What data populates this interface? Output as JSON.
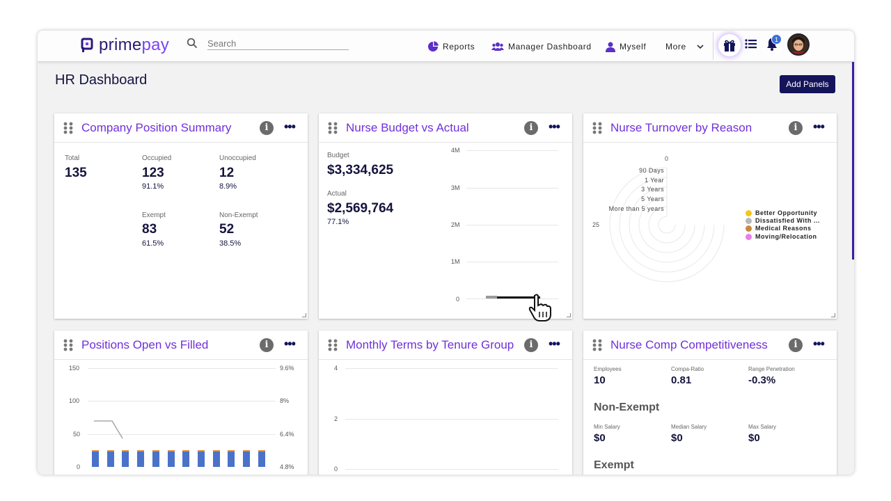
{
  "brand": {
    "prime": "prime",
    "pay": "pay"
  },
  "search": {
    "placeholder": "Search"
  },
  "nav": {
    "reports": "Reports",
    "manager_dashboard": "Manager Dashboard",
    "myself": "Myself",
    "more": "More",
    "notification_count": "1"
  },
  "page": {
    "title": "HR Dashboard",
    "add_panels": "Add Panels"
  },
  "panels": {
    "company_position": {
      "title": "Company Position Summary",
      "total_label": "Total",
      "total": "135",
      "occupied_label": "Occupied",
      "occupied": "123",
      "occupied_pct": "91.1%",
      "unoccupied_label": "Unoccupied",
      "unoccupied": "12",
      "unoccupied_pct": "8.9%",
      "exempt_label": "Exempt",
      "exempt": "83",
      "exempt_pct": "61.5%",
      "nonexempt_label": "Non-Exempt",
      "nonexempt": "52",
      "nonexempt_pct": "38.5%"
    },
    "nurse_budget": {
      "title": "Nurse Budget vs Actual",
      "budget_label": "Budget",
      "budget": "$3,334,625",
      "actual_label": "Actual",
      "actual": "$2,569,764",
      "actual_pct": "77.1%",
      "y_ticks": [
        "4M",
        "3M",
        "2M",
        "1M",
        "0"
      ]
    },
    "nurse_turnover": {
      "title": "Nurse Turnover by Reason",
      "ring_labels": [
        "90 Days",
        "1 Year",
        "3 Years",
        "5 Years",
        "More than 5 years"
      ],
      "top_value": "0",
      "side_value": "25",
      "legend": [
        {
          "label": "Better Opportunity",
          "color": "#f5c518"
        },
        {
          "label": "Dissatisfied With ...",
          "color": "#b9b9b9"
        },
        {
          "label": "Medical Reasons",
          "color": "#c98a3a"
        },
        {
          "label": "Moving/Relocation",
          "color": "#e87ee8"
        }
      ]
    },
    "positions_open": {
      "title": "Positions Open vs Filled",
      "left_ticks": [
        "150",
        "100",
        "50",
        "0"
      ],
      "right_ticks": [
        "9.6%",
        "8%",
        "6.4%",
        "4.8%"
      ],
      "bars": [
        23,
        23,
        23,
        23,
        23,
        23,
        23,
        23,
        23,
        23,
        23,
        23
      ]
    },
    "monthly_terms": {
      "title": "Monthly Terms by Tenure Group",
      "y_ticks": [
        "4",
        "2",
        "0"
      ]
    },
    "nurse_comp": {
      "title": "Nurse Comp Competitiveness",
      "employees_label": "Employees",
      "employees": "10",
      "compa_label": "Compa-Ratio",
      "compa": "0.81",
      "range_label": "Range Penetration",
      "range": "-0.3%",
      "nonexempt_heading": "Non-Exempt",
      "min_label": "Min Salary",
      "min": "$0",
      "median_label": "Median Salary",
      "median": "$0",
      "max_label": "Max Salary",
      "max": "$0",
      "exempt_heading": "Exempt"
    }
  },
  "colors": {
    "accent": "#7030d8",
    "navy": "#14145a",
    "bar_blue": "#4a72c8",
    "bar_orange": "#e08a3c"
  }
}
